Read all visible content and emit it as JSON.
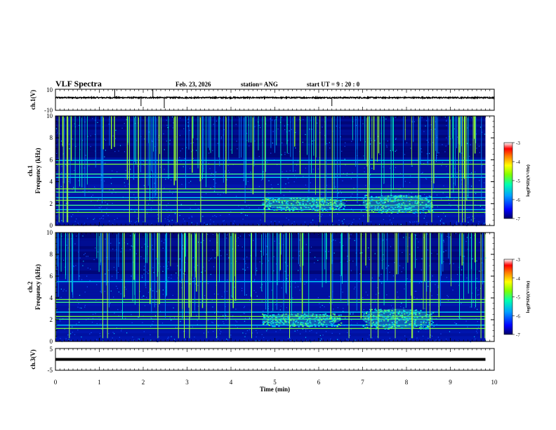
{
  "header": {
    "title": "VLF Spectra",
    "date": "Feb. 23, 2026",
    "station": "station= ANG",
    "start_time": "start  UT =   9 : 20 : 0"
  },
  "chart_data": [
    {
      "type": "line",
      "panel": "ch1-waveform",
      "ylabel": "ch.1(V)",
      "ylim": [
        -10,
        10
      ],
      "y_ticks": [
        "10",
        "-10"
      ],
      "x_range_min": [
        0,
        10
      ],
      "baseline_value": 2,
      "color": "#000000"
    },
    {
      "type": "heatmap",
      "panel": "ch1-spectrogram",
      "ylabel_channel": "ch.1",
      "ylabel": "Frequency (kHz)",
      "ylim": [
        0,
        10
      ],
      "y_ticks": [
        "0",
        "2",
        "4",
        "6",
        "8",
        "10"
      ],
      "x_range_min": [
        0,
        9.8
      ],
      "persistent_lines_khz": [
        1.2,
        1.45,
        1.85,
        2.3,
        2.55,
        3.05,
        3.35,
        4.4,
        4.7,
        5.6,
        5.95
      ],
      "emission_patches": [
        {
          "t_min": 4.7,
          "t_max": 6.6,
          "f_khz": [
            1.4,
            2.6
          ]
        },
        {
          "t_min": 7.0,
          "t_max": 8.6,
          "f_khz": [
            1.2,
            2.8
          ]
        }
      ],
      "colorbar": {
        "label": "log(PSD)(V²/Hz)",
        "range": [
          -7,
          -3
        ],
        "ticks": [
          "-3",
          "-4",
          "-5",
          "-6",
          "-7"
        ]
      }
    },
    {
      "type": "heatmap",
      "panel": "ch2-spectrogram",
      "ylabel_channel": "ch.2",
      "ylabel": "Frequency (kHz)",
      "ylim": [
        0,
        10
      ],
      "y_ticks": [
        "0",
        "2",
        "4",
        "6",
        "8",
        "10"
      ],
      "x_range_min": [
        0,
        9.8
      ],
      "persistent_lines_khz": [
        1.2,
        1.5,
        2.05,
        2.3,
        2.7,
        3.6,
        3.85,
        5.5
      ],
      "emission_patches": [
        {
          "t_min": 4.7,
          "t_max": 6.5,
          "f_khz": [
            1.4,
            2.6
          ]
        },
        {
          "t_min": 7.0,
          "t_max": 8.6,
          "f_khz": [
            1.2,
            3.0
          ]
        }
      ],
      "colorbar": {
        "label": "log(PSD)(V²/Hz)",
        "range": [
          -7,
          -3
        ],
        "ticks": [
          "-3",
          "-4",
          "-5",
          "-6",
          "-7"
        ]
      }
    },
    {
      "type": "line",
      "panel": "ch3-waveform",
      "ylabel": "ch.3(V)",
      "ylim": [
        -5,
        5
      ],
      "y_ticks": [
        "5",
        "-5"
      ],
      "x_range_min": [
        0,
        9.8
      ],
      "baseline_value": 0,
      "color": "#000000"
    }
  ],
  "x_axis": {
    "xlabel": "Time  (min)",
    "xlim": [
      0,
      10
    ],
    "ticks": [
      "0",
      "1",
      "2",
      "3",
      "4",
      "5",
      "6",
      "7",
      "8",
      "9",
      "10"
    ]
  },
  "colormap": [
    "#000066",
    "#0000ff",
    "#00a0ff",
    "#00ffb0",
    "#80ff00",
    "#ffff00",
    "#ff8000",
    "#ff0000",
    "#ffffff"
  ]
}
